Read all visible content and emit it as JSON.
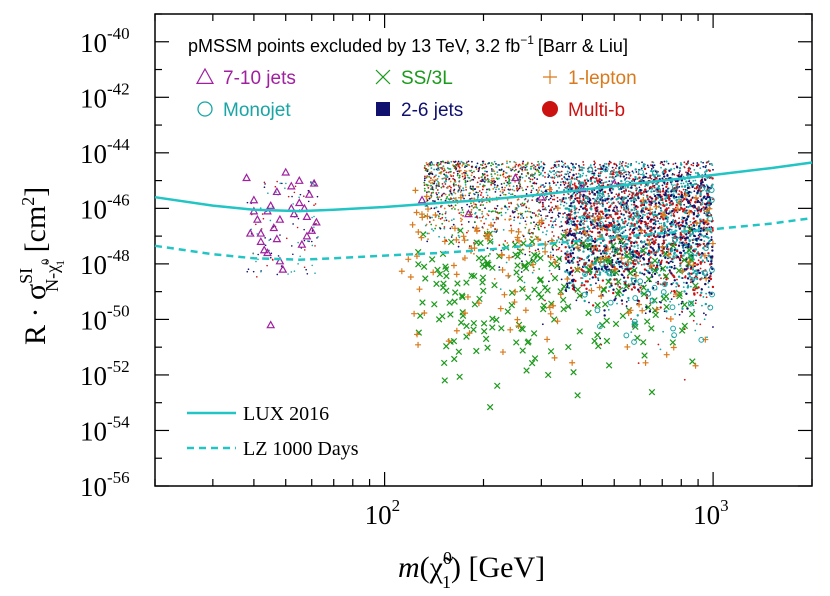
{
  "chart_data": {
    "type": "scatter",
    "title": "pMSSM points excluded by 13 TeV, 3.2 fb",
    "title_sup": "−1",
    "title_citation": "[Barr & Liu]",
    "x_scale": "log",
    "y_scale": "log",
    "xlim": [
      20,
      2000
    ],
    "ylim_exponent": [
      -56,
      -39
    ],
    "xlabel_parts": {
      "italic": "m",
      "open": "(",
      "chi": "χ̃",
      "sup": "0",
      "sub": "1",
      "close": ")",
      "unit": " [GeV]"
    },
    "ylabel_parts": {
      "prefix": "R · σ",
      "sup": "SI",
      "sub": "N-χ̃",
      "sub_sup": "0",
      "sub_sub": "1",
      "unit": " [cm",
      "unit_sup": "2",
      "unit_close": "]"
    },
    "x_ticks": [
      {
        "value": 100,
        "base": "10",
        "exp": "2"
      },
      {
        "value": 1000,
        "base": "10",
        "exp": "3"
      }
    ],
    "y_ticks": [
      {
        "exp_value": -40,
        "base": "10",
        "exp": "-40"
      },
      {
        "exp_value": -42,
        "base": "10",
        "exp": "-42"
      },
      {
        "exp_value": -44,
        "base": "10",
        "exp": "-44"
      },
      {
        "exp_value": -46,
        "base": "10",
        "exp": "-46"
      },
      {
        "exp_value": -48,
        "base": "10",
        "exp": "-48"
      },
      {
        "exp_value": -50,
        "base": "10",
        "exp": "-50"
      },
      {
        "exp_value": -52,
        "base": "10",
        "exp": "-52"
      },
      {
        "exp_value": -54,
        "base": "10",
        "exp": "-54"
      },
      {
        "exp_value": -56,
        "base": "10",
        "exp": "-56"
      }
    ],
    "marker_legend": [
      {
        "label": "7-10 jets",
        "marker": "triangle",
        "color": "#a020a0"
      },
      {
        "label": "SS/3L",
        "marker": "x",
        "color": "#1a9a1a"
      },
      {
        "label": "1-lepton",
        "marker": "plus",
        "color": "#d97a1c"
      },
      {
        "label": "Monojet",
        "marker": "circle-open",
        "color": "#19a5a5"
      },
      {
        "label": "2-6 jets",
        "marker": "square",
        "color": "#10106e"
      },
      {
        "label": "Multi-b",
        "marker": "circle",
        "color": "#cc1111"
      }
    ],
    "curves": [
      {
        "name": "LUX 2016",
        "style": "solid",
        "color": "#22c4c4",
        "points": [
          [
            20,
            -45.6
          ],
          [
            30,
            -45.9
          ],
          [
            40,
            -46.05
          ],
          [
            55,
            -46.1
          ],
          [
            70,
            -46.05
          ],
          [
            100,
            -45.95
          ],
          [
            150,
            -45.8
          ],
          [
            200,
            -45.7
          ],
          [
            300,
            -45.5
          ],
          [
            500,
            -45.2
          ],
          [
            700,
            -45.0
          ],
          [
            1000,
            -44.8
          ],
          [
            1500,
            -44.55
          ],
          [
            2000,
            -44.35
          ]
        ]
      },
      {
        "name": "LZ 1000 Days",
        "style": "dashed",
        "color": "#22c4c4",
        "points": [
          [
            20,
            -47.35
          ],
          [
            30,
            -47.65
          ],
          [
            40,
            -47.8
          ],
          [
            55,
            -47.85
          ],
          [
            70,
            -47.8
          ],
          [
            100,
            -47.7
          ],
          [
            150,
            -47.6
          ],
          [
            200,
            -47.5
          ],
          [
            300,
            -47.3
          ],
          [
            500,
            -47.05
          ],
          [
            700,
            -46.9
          ],
          [
            1000,
            -46.75
          ],
          [
            1500,
            -46.55
          ],
          [
            2000,
            -46.35
          ]
        ]
      }
    ],
    "clusters": {
      "triangle_points": [
        [
          38,
          -44.9
        ],
        [
          40,
          -45.7
        ],
        [
          41,
          -46.4
        ],
        [
          42,
          -46.9
        ],
        [
          43,
          -47.5
        ],
        [
          44,
          -46.1
        ],
        [
          45,
          -45.9
        ],
        [
          46,
          -46.7
        ],
        [
          47,
          -47.1
        ],
        [
          48,
          -47.9
        ],
        [
          49,
          -48.2
        ],
        [
          50,
          -44.7
        ],
        [
          52,
          -45.2
        ],
        [
          53,
          -46.2
        ],
        [
          55,
          -45.8
        ],
        [
          57,
          -46.0
        ],
        [
          58,
          -46.3
        ],
        [
          59,
          -45.5
        ],
        [
          60,
          -46.8
        ],
        [
          62,
          -46.5
        ],
        [
          55,
          -45.0
        ],
        [
          45,
          -50.2
        ],
        [
          42,
          -47.2
        ],
        [
          40,
          -46.1
        ],
        [
          48,
          -46.4
        ],
        [
          58,
          -47.0
        ],
        [
          44,
          -47.6
        ],
        [
          52,
          -46.0
        ],
        [
          61,
          -45.1
        ],
        [
          39,
          -46.9
        ],
        [
          47,
          -45.4
        ],
        [
          56,
          -47.3
        ],
        [
          300,
          -45.6
        ],
        [
          250,
          -44.9
        ],
        [
          180,
          -46.2
        ],
        [
          500,
          -45.1
        ],
        [
          130,
          -45.7
        ],
        [
          400,
          -45.3
        ]
      ]
    }
  }
}
